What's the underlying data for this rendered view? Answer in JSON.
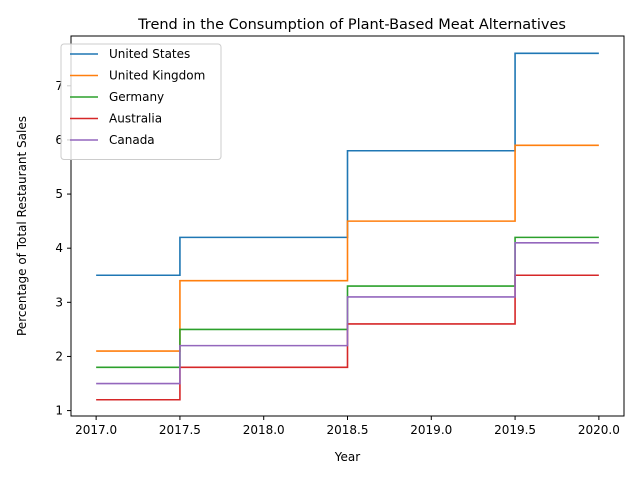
{
  "chart_data": {
    "type": "line",
    "step": "mid",
    "title": "Trend in the Consumption of Plant-Based Meat Alternatives",
    "xlabel": "Year",
    "ylabel": "Percentage of Total Restaurant Sales",
    "x": [
      2017,
      2018,
      2019,
      2020
    ],
    "xlim": [
      2016.85,
      2020.15
    ],
    "ylim": [
      0.9,
      7.92
    ],
    "xticks": [
      2017.0,
      2017.5,
      2018.0,
      2018.5,
      2019.0,
      2019.5,
      2020.0
    ],
    "xtick_labels": [
      "2017.0",
      "2017.5",
      "2018.0",
      "2018.5",
      "2019.0",
      "2019.5",
      "2020.0"
    ],
    "yticks": [
      1,
      2,
      3,
      4,
      5,
      6,
      7
    ],
    "ytick_labels": [
      "1",
      "2",
      "3",
      "4",
      "5",
      "6",
      "7"
    ],
    "grid": false,
    "legend_position": "upper left",
    "series": [
      {
        "name": "United States",
        "color": "#1f77b4",
        "values": [
          3.5,
          4.2,
          5.8,
          7.6
        ]
      },
      {
        "name": "United Kingdom",
        "color": "#ff7f0e",
        "values": [
          2.1,
          3.4,
          4.5,
          5.9
        ]
      },
      {
        "name": "Germany",
        "color": "#2ca02c",
        "values": [
          1.8,
          2.5,
          3.3,
          4.2
        ]
      },
      {
        "name": "Australia",
        "color": "#d62728",
        "values": [
          1.2,
          1.8,
          2.6,
          3.5
        ]
      },
      {
        "name": "Canada",
        "color": "#9467bd",
        "values": [
          1.5,
          2.2,
          3.1,
          4.1
        ]
      }
    ]
  }
}
